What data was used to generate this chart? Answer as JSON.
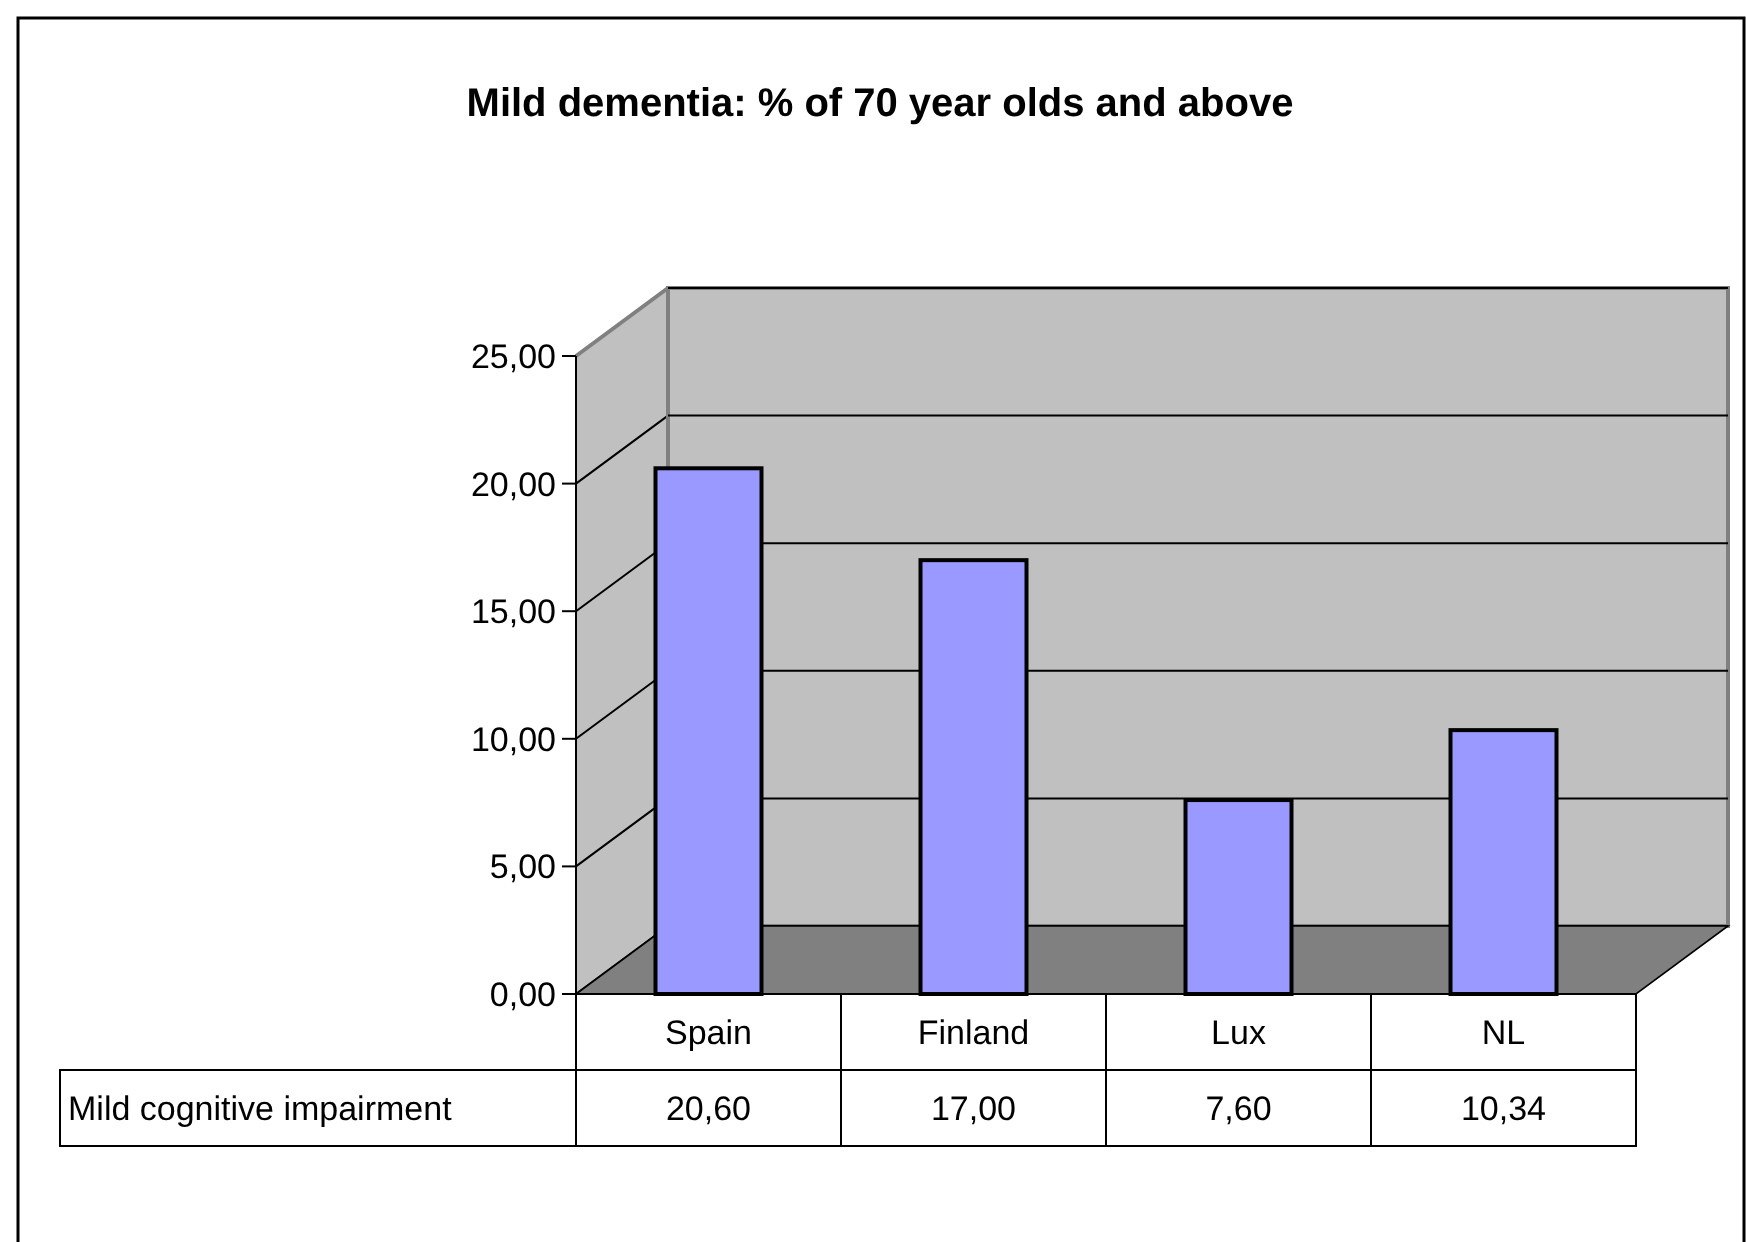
{
  "chart_data": {
    "type": "bar",
    "title": "Mild dementia: % of 70 year olds and above",
    "categories": [
      "Spain",
      "Finland",
      "Lux",
      "NL"
    ],
    "series": [
      {
        "name": "Mild cognitive impairment",
        "color": "#9999ff",
        "values": [
          20.6,
          17.0,
          7.6,
          10.34
        ],
        "value_labels": [
          "20,60",
          "17,00",
          "7,60",
          "10,34"
        ]
      }
    ],
    "ylim": [
      0,
      25
    ],
    "yticks": [
      {
        "value": 0,
        "label": "0,00"
      },
      {
        "value": 5,
        "label": "5,00"
      },
      {
        "value": 10,
        "label": "10,00"
      },
      {
        "value": 15,
        "label": "15,00"
      },
      {
        "value": 20,
        "label": "20,00"
      },
      {
        "value": 25,
        "label": "25,00"
      }
    ],
    "grid": "y"
  }
}
